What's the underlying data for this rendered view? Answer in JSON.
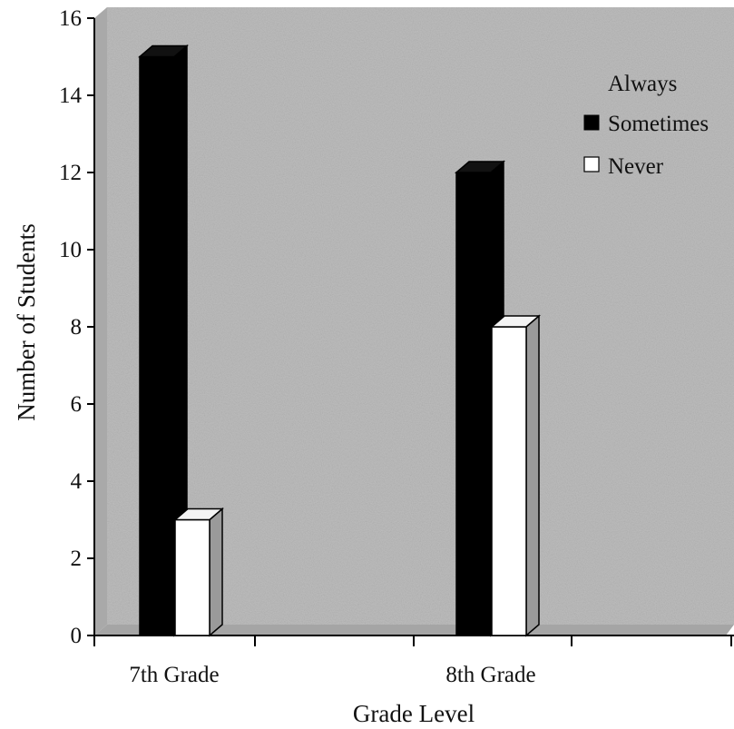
{
  "chart_data": {
    "type": "bar",
    "categories": [
      "7th Grade",
      "8th Grade"
    ],
    "series": [
      {
        "name": "Always",
        "values": [
          0,
          0
        ],
        "color": "#b8b8b8"
      },
      {
        "name": "Sometimes",
        "values": [
          15,
          12
        ],
        "color": "#000000"
      },
      {
        "name": "Never",
        "values": [
          3,
          8
        ],
        "color": "#ffffff"
      }
    ],
    "xlabel": "Grade Level",
    "ylabel": "Number of Students",
    "ylim": [
      0,
      16
    ],
    "yticks": [
      "0",
      "2",
      "4",
      "6",
      "8",
      "10",
      "12",
      "14",
      "16"
    ],
    "legend_position": "top-right",
    "grid": false,
    "background_color": "#bdbdbd"
  }
}
